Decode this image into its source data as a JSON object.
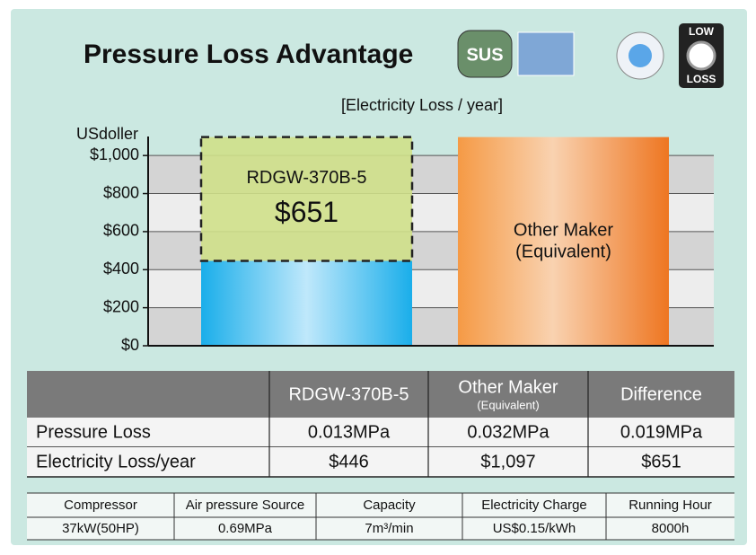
{
  "chart_data": {
    "type": "bar",
    "title": "Pressure Loss Advantage",
    "subtitle": "[Electricity Loss / year]",
    "ylabel": "USdoller",
    "ylim": [
      0,
      1100
    ],
    "yticks": [
      {
        "value": 0,
        "label": "$0"
      },
      {
        "value": 200,
        "label": "$200"
      },
      {
        "value": 400,
        "label": "$400"
      },
      {
        "value": 600,
        "label": "$600"
      },
      {
        "value": 800,
        "label": "$800"
      },
      {
        "value": 1000,
        "label": "$1,000"
      }
    ],
    "grid": true,
    "bars": [
      {
        "label_lines": [
          "RDGW-370B-5"
        ],
        "value": 446,
        "color": "#29b6ee"
      },
      {
        "label_lines": [
          "Other Maker",
          "(Equivalent)"
        ],
        "value": 1097,
        "color": "#f07f24"
      }
    ],
    "difference": {
      "on_bar": 0,
      "value": 651,
      "value_label": "$651",
      "color": "#cfe08a"
    }
  },
  "icons": {
    "sus": "SUS",
    "low": "LOW",
    "loss": "LOSS"
  },
  "comparison_table": {
    "columns": [
      {
        "text": "RDGW-370B-5"
      },
      {
        "text": "Other Maker",
        "sub": "(Equivalent)"
      },
      {
        "text": "Difference"
      }
    ],
    "rows": [
      [
        "Pressure Loss",
        "0.013MPa",
        "0.032MPa",
        "0.019MPa"
      ],
      [
        "Electricity Loss/year",
        "$446",
        "$1,097",
        "$651"
      ]
    ]
  },
  "spec_table": {
    "header": [
      "Compressor",
      "Air pressure Source",
      "Capacity",
      "Electricity Charge",
      "Running Hour"
    ],
    "row": [
      "37kW(50HP)",
      "0.69MPa",
      "7m³/min",
      "US$0.15/kWh",
      "8000h"
    ]
  }
}
